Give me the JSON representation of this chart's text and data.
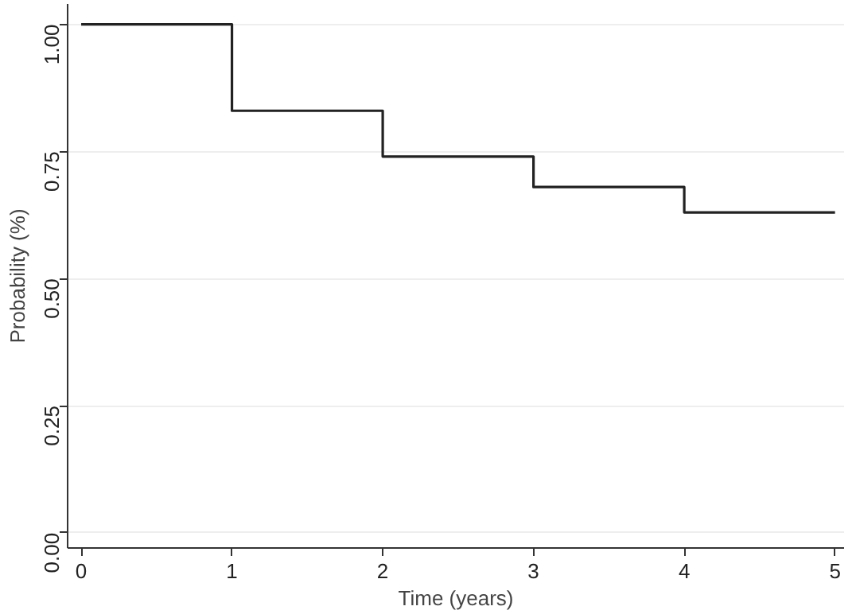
{
  "chart_data": {
    "type": "step",
    "xlabel": "Time (years)",
    "ylabel": "Probability (%)",
    "x": [
      0,
      1,
      2,
      3,
      4,
      5
    ],
    "series": [
      {
        "color": "#222222",
        "values": [
          1.0,
          0.83,
          0.74,
          0.68,
          0.63,
          0.63
        ]
      }
    ],
    "xlim": [
      -0.09,
      5.06
    ],
    "ylim": [
      -0.03,
      1.04
    ],
    "xticks": [
      0,
      1,
      2,
      3,
      4,
      5
    ],
    "yticks": [
      {
        "value": 0,
        "label": "0.00"
      },
      {
        "value": 0.25,
        "label": "0.25"
      },
      {
        "value": 0.5,
        "label": "0.50"
      },
      {
        "value": 0.75,
        "label": "0.75"
      },
      {
        "value": 1,
        "label": "1.00"
      }
    ],
    "grid": "y"
  }
}
